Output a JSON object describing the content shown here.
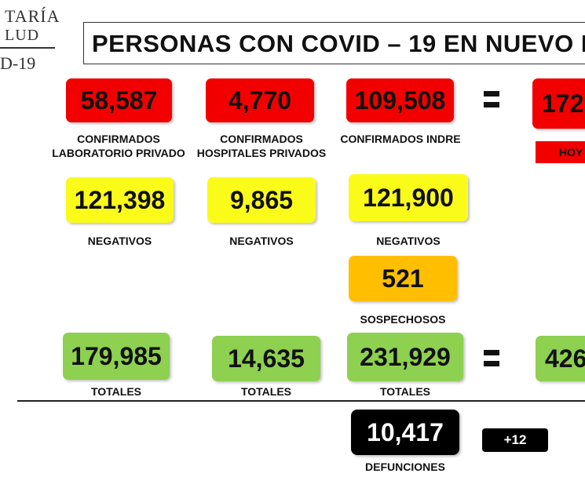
{
  "logo": {
    "line1": "TARÍA",
    "line2": "LUD",
    "line3": "D-19"
  },
  "title": "PERSONAS CON COVID – 19 EN NUEVO L",
  "confirmed": [
    {
      "value": "58,587",
      "label_1": "CONFIRMADOS",
      "label_2": "LABORATORIO PRIVADO"
    },
    {
      "value": "4,770",
      "label_1": "CONFIRMADOS",
      "label_2": "HOSPITALES PRIVADOS"
    },
    {
      "value": "109,508",
      "label_1": "CONFIRMADOS INDRE",
      "label_2": ""
    }
  ],
  "confirmed_total": "172",
  "today_label": "HOY",
  "negatives": [
    {
      "value": "121,398",
      "label": "NEGATIVOS"
    },
    {
      "value": "9,865",
      "label": "NEGATIVOS"
    },
    {
      "value": "121,900",
      "label": "NEGATIVOS"
    }
  ],
  "suspects": {
    "value": "521",
    "label": "SOSPECHOSOS"
  },
  "totals": [
    {
      "value": "179,985",
      "label": "TOTALES"
    },
    {
      "value": "14,635",
      "label": "TOTALES"
    },
    {
      "value": "231,929",
      "label": "TOTALES"
    }
  ],
  "grand_total": "426",
  "deaths": {
    "value": "10,417",
    "label": "DEFUNCIONES",
    "delta": "+12"
  },
  "colors": {
    "confirmed": "#f20000",
    "negative": "#fbfb1a",
    "suspect": "#ffbf00",
    "total": "#8ed04f",
    "deaths": "#000000"
  }
}
